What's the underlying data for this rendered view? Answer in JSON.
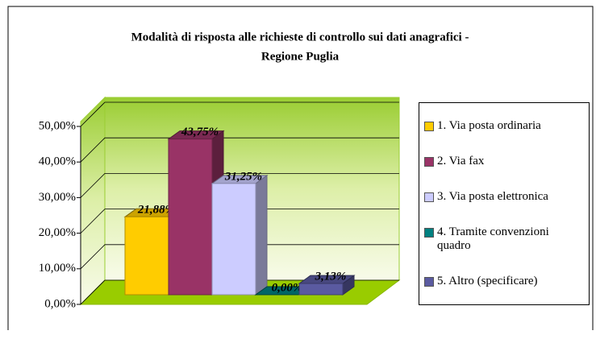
{
  "chart_data": {
    "type": "bar3d",
    "title": [
      "Modalità di risposta alle richieste di controllo sui dati anagrafici -",
      "Regione Puglia"
    ],
    "series": [
      {
        "name": "1. Via posta ordinaria",
        "color": "#FFCC00",
        "values": [
          21.88
        ],
        "value_labels": [
          "21,88%"
        ]
      },
      {
        "name": "2. Via fax",
        "color": "#993366",
        "values": [
          43.75
        ],
        "value_labels": [
          "43,75%"
        ]
      },
      {
        "name": "3. Via posta elettronica",
        "color": "#CCCCFF",
        "values": [
          31.25
        ],
        "value_labels": [
          "31,25%"
        ]
      },
      {
        "name": "4. Tramite convenzioni quadro",
        "color": "#008080",
        "values": [
          0
        ],
        "value_labels": [
          "0,00%"
        ]
      },
      {
        "name": "5. Altro (specificare)",
        "color": "#5A5AA0",
        "values": [
          3.13
        ],
        "value_labels": [
          "3,13%"
        ]
      }
    ],
    "ylim": [
      0,
      50
    ],
    "yticks": [
      {
        "value": 0,
        "label": "0,00%"
      },
      {
        "value": 10,
        "label": "10,00%"
      },
      {
        "value": 20,
        "label": "20,00%"
      },
      {
        "value": 30,
        "label": "30,00%"
      },
      {
        "value": 40,
        "label": "40,00%"
      },
      {
        "value": 50,
        "label": "50,00%"
      }
    ],
    "grid": true,
    "legend": "right"
  }
}
